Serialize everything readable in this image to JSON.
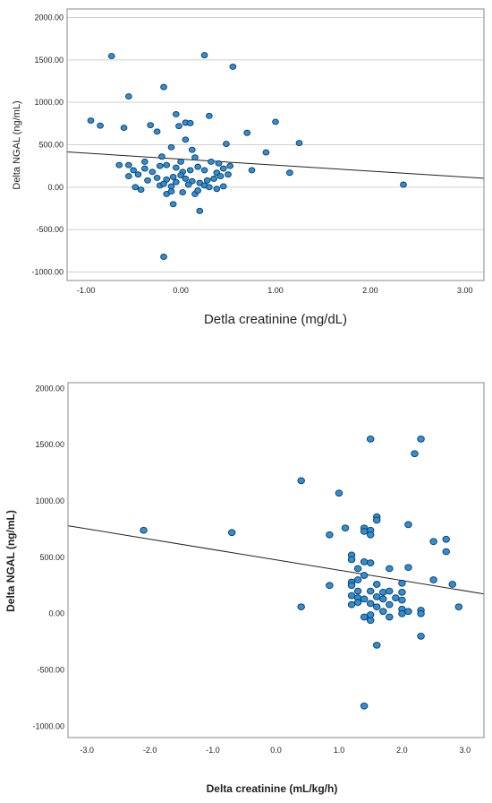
{
  "chart_data": [
    {
      "type": "scatter",
      "xlabel": "Detla creatinine (mg/dL)",
      "ylabel": "Delta NGAL (ng/mL)",
      "xlim": [
        -1.2,
        3.2
      ],
      "ylim": [
        -1100,
        2100
      ],
      "x_ticks": [
        -1.0,
        0.0,
        1.0,
        2.0,
        3.0
      ],
      "x_tick_labels": [
        "-1.00",
        "0.00",
        "1.00",
        "2.00",
        "3.00"
      ],
      "y_ticks": [
        -1000,
        -500,
        0,
        500,
        1000,
        1500,
        2000
      ],
      "y_tick_labels": [
        "-1000.00",
        "-500.00",
        "0.00",
        "500.00",
        "1000.00",
        "1500.00",
        "2000.00"
      ],
      "grid": "horizontal",
      "fit_line": {
        "x": [
          -1.2,
          3.2
        ],
        "y": [
          415,
          105
        ]
      },
      "points": [
        {
          "x": -0.73,
          "y": 1545
        },
        {
          "x": 0.25,
          "y": 1555
        },
        {
          "x": 0.55,
          "y": 1420
        },
        {
          "x": -0.18,
          "y": 1180
        },
        {
          "x": -0.55,
          "y": 1070
        },
        {
          "x": -0.95,
          "y": 785
        },
        {
          "x": -0.85,
          "y": 725
        },
        {
          "x": -0.6,
          "y": 700
        },
        {
          "x": -0.32,
          "y": 730
        },
        {
          "x": -0.25,
          "y": 655
        },
        {
          "x": -0.05,
          "y": 860
        },
        {
          "x": 0.05,
          "y": 760
        },
        {
          "x": 0.1,
          "y": 755
        },
        {
          "x": -0.02,
          "y": 720
        },
        {
          "x": 0.3,
          "y": 840
        },
        {
          "x": 0.7,
          "y": 640
        },
        {
          "x": 1.0,
          "y": 770
        },
        {
          "x": 1.25,
          "y": 520
        },
        {
          "x": 0.9,
          "y": 410
        },
        {
          "x": 0.48,
          "y": 510
        },
        {
          "x": 0.12,
          "y": 440
        },
        {
          "x": 0.05,
          "y": 560
        },
        {
          "x": -0.1,
          "y": 470
        },
        {
          "x": -0.2,
          "y": 360
        },
        {
          "x": 0.0,
          "y": 300
        },
        {
          "x": 0.15,
          "y": 350
        },
        {
          "x": 0.32,
          "y": 300
        },
        {
          "x": 0.4,
          "y": 280
        },
        {
          "x": -0.38,
          "y": 300
        },
        {
          "x": -0.65,
          "y": 260
        },
        {
          "x": -0.55,
          "y": 260
        },
        {
          "x": -0.5,
          "y": 200
        },
        {
          "x": -0.38,
          "y": 220
        },
        {
          "x": -0.3,
          "y": 180
        },
        {
          "x": -0.22,
          "y": 250
        },
        {
          "x": -0.15,
          "y": 260
        },
        {
          "x": -0.05,
          "y": 230
        },
        {
          "x": 0.02,
          "y": 180
        },
        {
          "x": 0.1,
          "y": 200
        },
        {
          "x": 0.18,
          "y": 240
        },
        {
          "x": 0.25,
          "y": 200
        },
        {
          "x": 0.38,
          "y": 170
        },
        {
          "x": 0.45,
          "y": 220
        },
        {
          "x": 0.52,
          "y": 250
        },
        {
          "x": 0.75,
          "y": 200
        },
        {
          "x": 1.15,
          "y": 170
        },
        {
          "x": -0.55,
          "y": 130
        },
        {
          "x": -0.45,
          "y": 150
        },
        {
          "x": -0.35,
          "y": 80
        },
        {
          "x": -0.25,
          "y": 110
        },
        {
          "x": -0.15,
          "y": 90
        },
        {
          "x": -0.08,
          "y": 120
        },
        {
          "x": 0.0,
          "y": 140
        },
        {
          "x": 0.05,
          "y": 100
        },
        {
          "x": 0.12,
          "y": 70
        },
        {
          "x": 0.2,
          "y": 50
        },
        {
          "x": 0.28,
          "y": 80
        },
        {
          "x": 0.35,
          "y": 100
        },
        {
          "x": 0.42,
          "y": 130
        },
        {
          "x": 0.5,
          "y": 150
        },
        {
          "x": -0.48,
          "y": 0
        },
        {
          "x": -0.42,
          "y": -30
        },
        {
          "x": -0.22,
          "y": 20
        },
        {
          "x": -0.18,
          "y": 40
        },
        {
          "x": -0.1,
          "y": 10
        },
        {
          "x": -0.05,
          "y": 60
        },
        {
          "x": 0.02,
          "y": -60
        },
        {
          "x": 0.08,
          "y": 30
        },
        {
          "x": 0.15,
          "y": -80
        },
        {
          "x": 0.18,
          "y": -40
        },
        {
          "x": 0.25,
          "y": 20
        },
        {
          "x": 0.3,
          "y": 0
        },
        {
          "x": 0.38,
          "y": -20
        },
        {
          "x": 0.45,
          "y": 10
        },
        {
          "x": -0.15,
          "y": -80
        },
        {
          "x": -0.1,
          "y": -50
        },
        {
          "x": -0.08,
          "y": -200
        },
        {
          "x": 0.2,
          "y": -280
        },
        {
          "x": -0.18,
          "y": -820
        },
        {
          "x": 2.35,
          "y": 30
        }
      ]
    },
    {
      "type": "scatter",
      "xlabel": "Delta creatinine (mL/kg/h)",
      "ylabel": "Delta NGAL (ng/mL)",
      "xlim": [
        -3.3,
        3.3
      ],
      "ylim": [
        -1100,
        2050
      ],
      "x_ticks": [
        -3.0,
        -2.0,
        -1.0,
        0.0,
        1.0,
        2.0,
        3.0
      ],
      "x_tick_labels": [
        "-3.0",
        "-2.0",
        "-1.0",
        "0.0",
        "1.0",
        "2.0",
        "3.0"
      ],
      "y_ticks": [
        -1000,
        -500,
        0,
        500,
        1000,
        1500,
        2000
      ],
      "y_tick_labels": [
        "-1000.00",
        "-500.00",
        "0.00",
        "500.00",
        "1000.00",
        "1500.00",
        "2000.00"
      ],
      "grid": "none",
      "fit_line": {
        "x": [
          -3.3,
          3.3
        ],
        "y": [
          780,
          175
        ]
      },
      "points": [
        {
          "x": -2.1,
          "y": 740
        },
        {
          "x": -0.7,
          "y": 720
        },
        {
          "x": 0.4,
          "y": 1180
        },
        {
          "x": 0.4,
          "y": 60
        },
        {
          "x": 1.0,
          "y": 1070
        },
        {
          "x": 1.1,
          "y": 760
        },
        {
          "x": 0.85,
          "y": 700
        },
        {
          "x": 0.85,
          "y": 250
        },
        {
          "x": 1.5,
          "y": 1550
        },
        {
          "x": 2.3,
          "y": 1550
        },
        {
          "x": 2.2,
          "y": 1420
        },
        {
          "x": 1.6,
          "y": 860
        },
        {
          "x": 1.6,
          "y": 830
        },
        {
          "x": 2.1,
          "y": 790
        },
        {
          "x": 1.4,
          "y": 760
        },
        {
          "x": 1.4,
          "y": 730
        },
        {
          "x": 1.5,
          "y": 740
        },
        {
          "x": 1.5,
          "y": 700
        },
        {
          "x": 2.7,
          "y": 660
        },
        {
          "x": 2.5,
          "y": 640
        },
        {
          "x": 2.7,
          "y": 550
        },
        {
          "x": 1.2,
          "y": 520
        },
        {
          "x": 1.2,
          "y": 480
        },
        {
          "x": 1.4,
          "y": 460
        },
        {
          "x": 1.5,
          "y": 450
        },
        {
          "x": 1.3,
          "y": 400
        },
        {
          "x": 1.8,
          "y": 400
        },
        {
          "x": 2.1,
          "y": 410
        },
        {
          "x": 1.4,
          "y": 340
        },
        {
          "x": 1.3,
          "y": 300
        },
        {
          "x": 2.5,
          "y": 300
        },
        {
          "x": 1.2,
          "y": 280
        },
        {
          "x": 1.2,
          "y": 250
        },
        {
          "x": 1.6,
          "y": 260
        },
        {
          "x": 2.0,
          "y": 270
        },
        {
          "x": 2.8,
          "y": 260
        },
        {
          "x": 1.3,
          "y": 200
        },
        {
          "x": 1.5,
          "y": 200
        },
        {
          "x": 1.7,
          "y": 190
        },
        {
          "x": 1.8,
          "y": 200
        },
        {
          "x": 2.0,
          "y": 190
        },
        {
          "x": 1.2,
          "y": 160
        },
        {
          "x": 1.3,
          "y": 140
        },
        {
          "x": 1.4,
          "y": 130
        },
        {
          "x": 1.6,
          "y": 150
        },
        {
          "x": 1.7,
          "y": 130
        },
        {
          "x": 1.9,
          "y": 140
        },
        {
          "x": 2.0,
          "y": 120
        },
        {
          "x": 1.2,
          "y": 80
        },
        {
          "x": 1.3,
          "y": 100
        },
        {
          "x": 1.5,
          "y": 90
        },
        {
          "x": 1.6,
          "y": 60
        },
        {
          "x": 1.8,
          "y": 80
        },
        {
          "x": 2.0,
          "y": 40
        },
        {
          "x": 2.1,
          "y": 20
        },
        {
          "x": 2.3,
          "y": 30
        },
        {
          "x": 2.9,
          "y": 60
        },
        {
          "x": 1.4,
          "y": -30
        },
        {
          "x": 1.5,
          "y": -60
        },
        {
          "x": 1.7,
          "y": 20
        },
        {
          "x": 1.8,
          "y": -30
        },
        {
          "x": 2.0,
          "y": 0
        },
        {
          "x": 2.3,
          "y": 0
        },
        {
          "x": 1.5,
          "y": -10
        },
        {
          "x": 1.6,
          "y": -280
        },
        {
          "x": 2.3,
          "y": -200
        },
        {
          "x": 1.4,
          "y": -820
        }
      ]
    }
  ]
}
